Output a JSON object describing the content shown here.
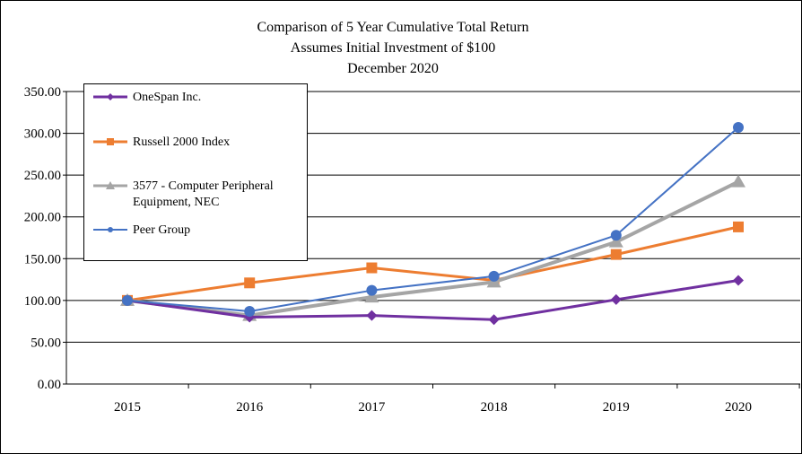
{
  "chart_data": {
    "type": "line",
    "title": "Comparison  of 5 Year Cumulative  Total Return",
    "subtitle_lines": [
      "Assumes Initial  Investment of $100",
      "December  2020"
    ],
    "categories": [
      "2015",
      "2016",
      "2017",
      "2018",
      "2019",
      "2020"
    ],
    "ylim": [
      0,
      350
    ],
    "yticks": [
      "0.00",
      "50.00",
      "100.00",
      "150.00",
      "200.00",
      "250.00",
      "300.00",
      "350.00"
    ],
    "ytick_values": [
      0,
      50,
      100,
      150,
      200,
      250,
      300,
      350
    ],
    "grid": true,
    "legend_position": "top-left",
    "series": [
      {
        "name": "OneSpan Inc.",
        "color": "#7030A0",
        "marker": "diamond",
        "values": [
          100,
          80,
          82,
          77,
          101,
          124
        ]
      },
      {
        "name": "Russell 2000 Index",
        "color": "#ED7D31",
        "marker": "square",
        "values": [
          100,
          121,
          139,
          124,
          155,
          188
        ]
      },
      {
        "name": "3577 - Computer Peripheral Equipment, NEC",
        "color": "#A5A5A5",
        "marker": "triangle",
        "values": [
          100,
          82,
          104,
          122,
          170,
          242
        ]
      },
      {
        "name": "Peer Group",
        "color": "#4472C4",
        "marker": "circle",
        "values": [
          100,
          87,
          112,
          129,
          178,
          307
        ]
      }
    ]
  }
}
